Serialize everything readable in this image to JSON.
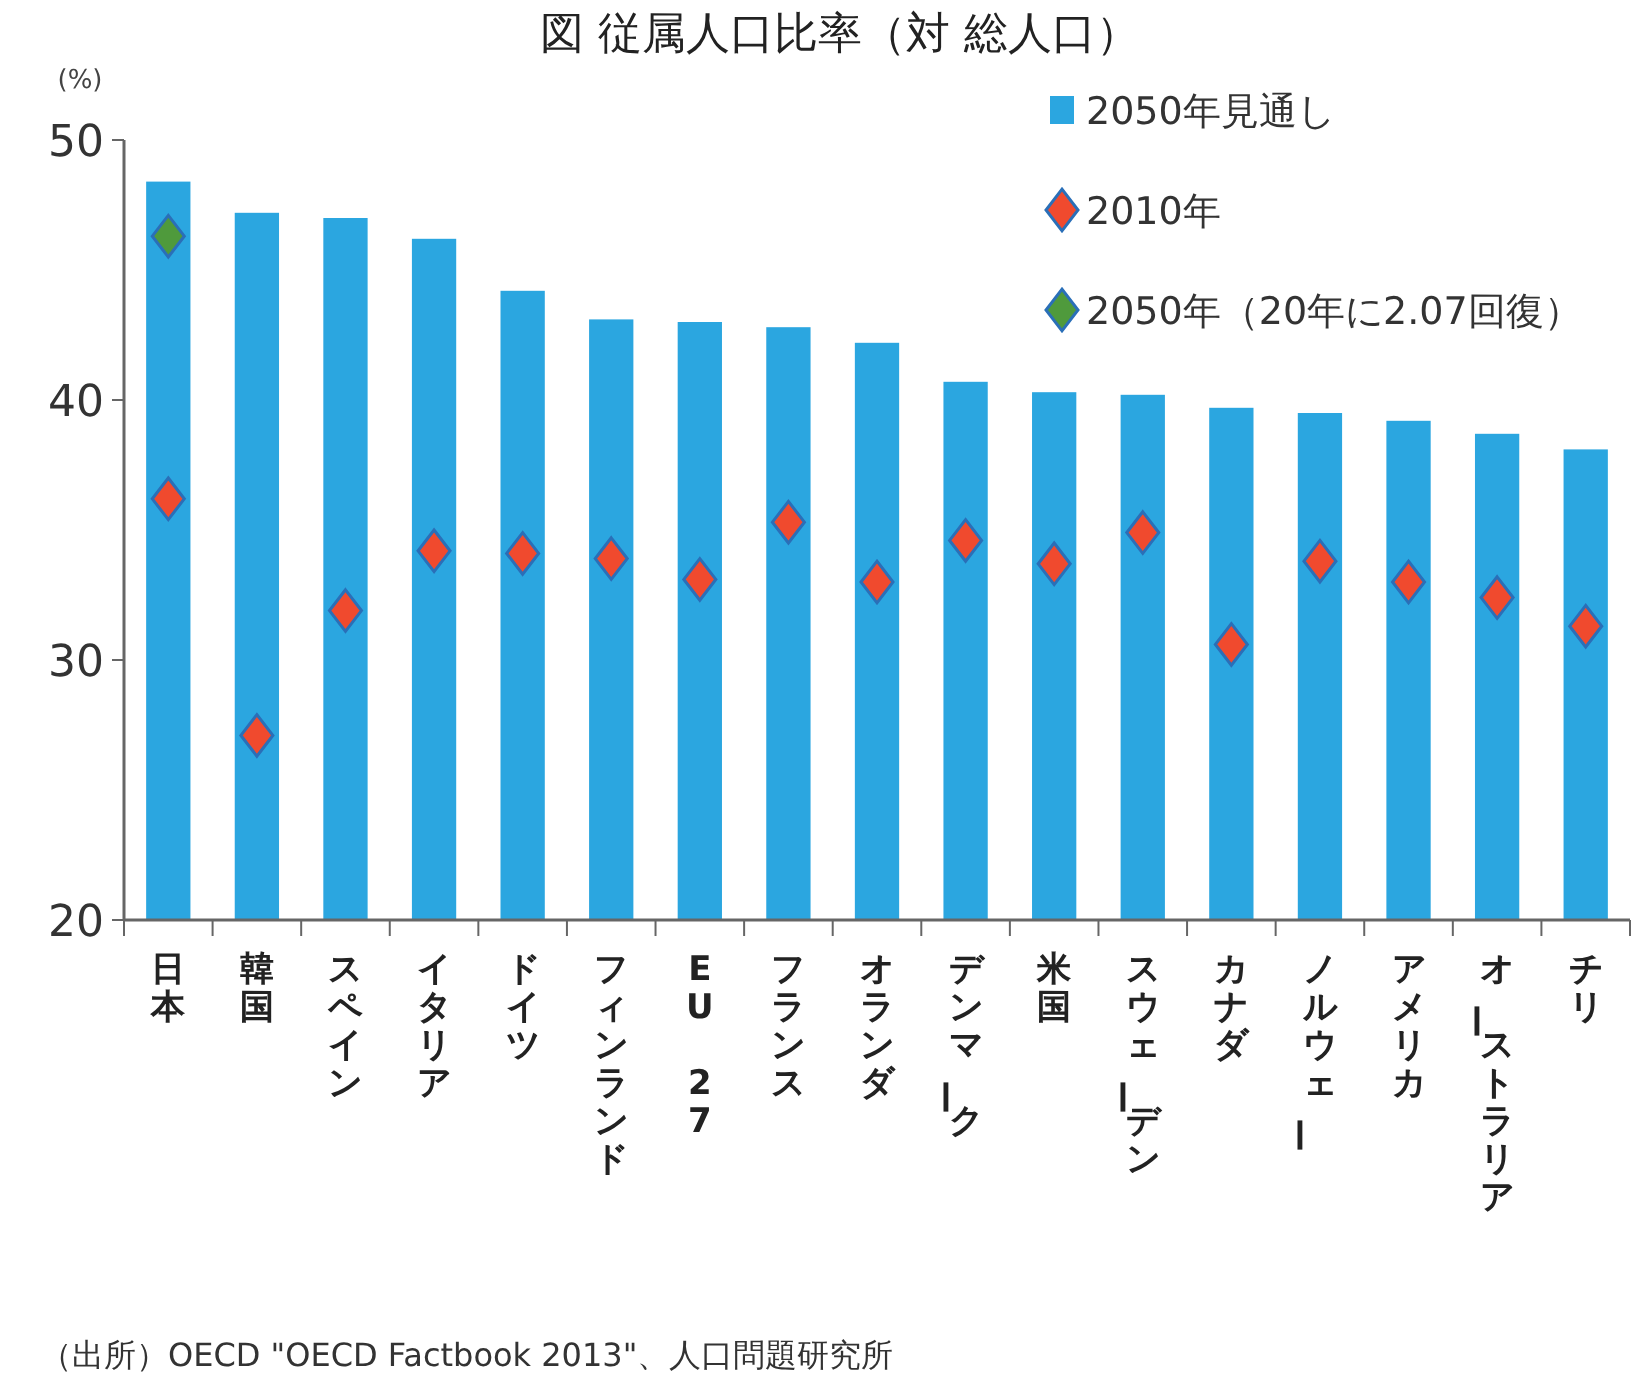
{
  "chart_data": {
    "type": "bar",
    "title": "図 従属人口比率（対 総人口）",
    "ylabel": "(%)",
    "categories": [
      "日本",
      "韓国",
      "スペイン",
      "イタリア",
      "ドイツ",
      "フィンランド",
      "EU 27",
      "フランス",
      "オランダ",
      "デンマーク",
      "米国",
      "スウェーデン",
      "カナダ",
      "ノルウェー",
      "アメリカ",
      "オーストラリア",
      "チリ"
    ],
    "series": [
      {
        "name": "2050年見通し",
        "color": "#2ba6e0",
        "values": [
          48.4,
          47.2,
          47.0,
          46.2,
          44.2,
          43.1,
          43.0,
          42.8,
          42.2,
          40.7,
          40.3,
          40.2,
          39.7,
          39.5,
          39.2,
          38.7,
          38.1
        ]
      },
      {
        "name": "2010年",
        "type": "scatter",
        "marker": "diamond",
        "color": "#f04a2e",
        "values": [
          36.2,
          27.1,
          31.9,
          34.2,
          34.1,
          33.9,
          33.1,
          35.3,
          33.0,
          34.6,
          33.7,
          34.9,
          30.6,
          33.8,
          33.0,
          32.4,
          31.3
        ]
      },
      {
        "name": "2050年（20年に2.07回復）",
        "type": "scatter",
        "marker": "diamond",
        "color": "#4f9a3c",
        "values": [
          46.3,
          null,
          null,
          null,
          null,
          null,
          null,
          null,
          null,
          null,
          null,
          null,
          null,
          null,
          null,
          null,
          null
        ]
      }
    ],
    "ylim": [
      20,
      50
    ],
    "yticks": [
      20,
      30,
      40,
      50
    ],
    "grid": false,
    "legend": "top right",
    "annotations": [
      "（出所）OECD \"OECD Factbook 2013\"、人口問題研究所"
    ]
  }
}
